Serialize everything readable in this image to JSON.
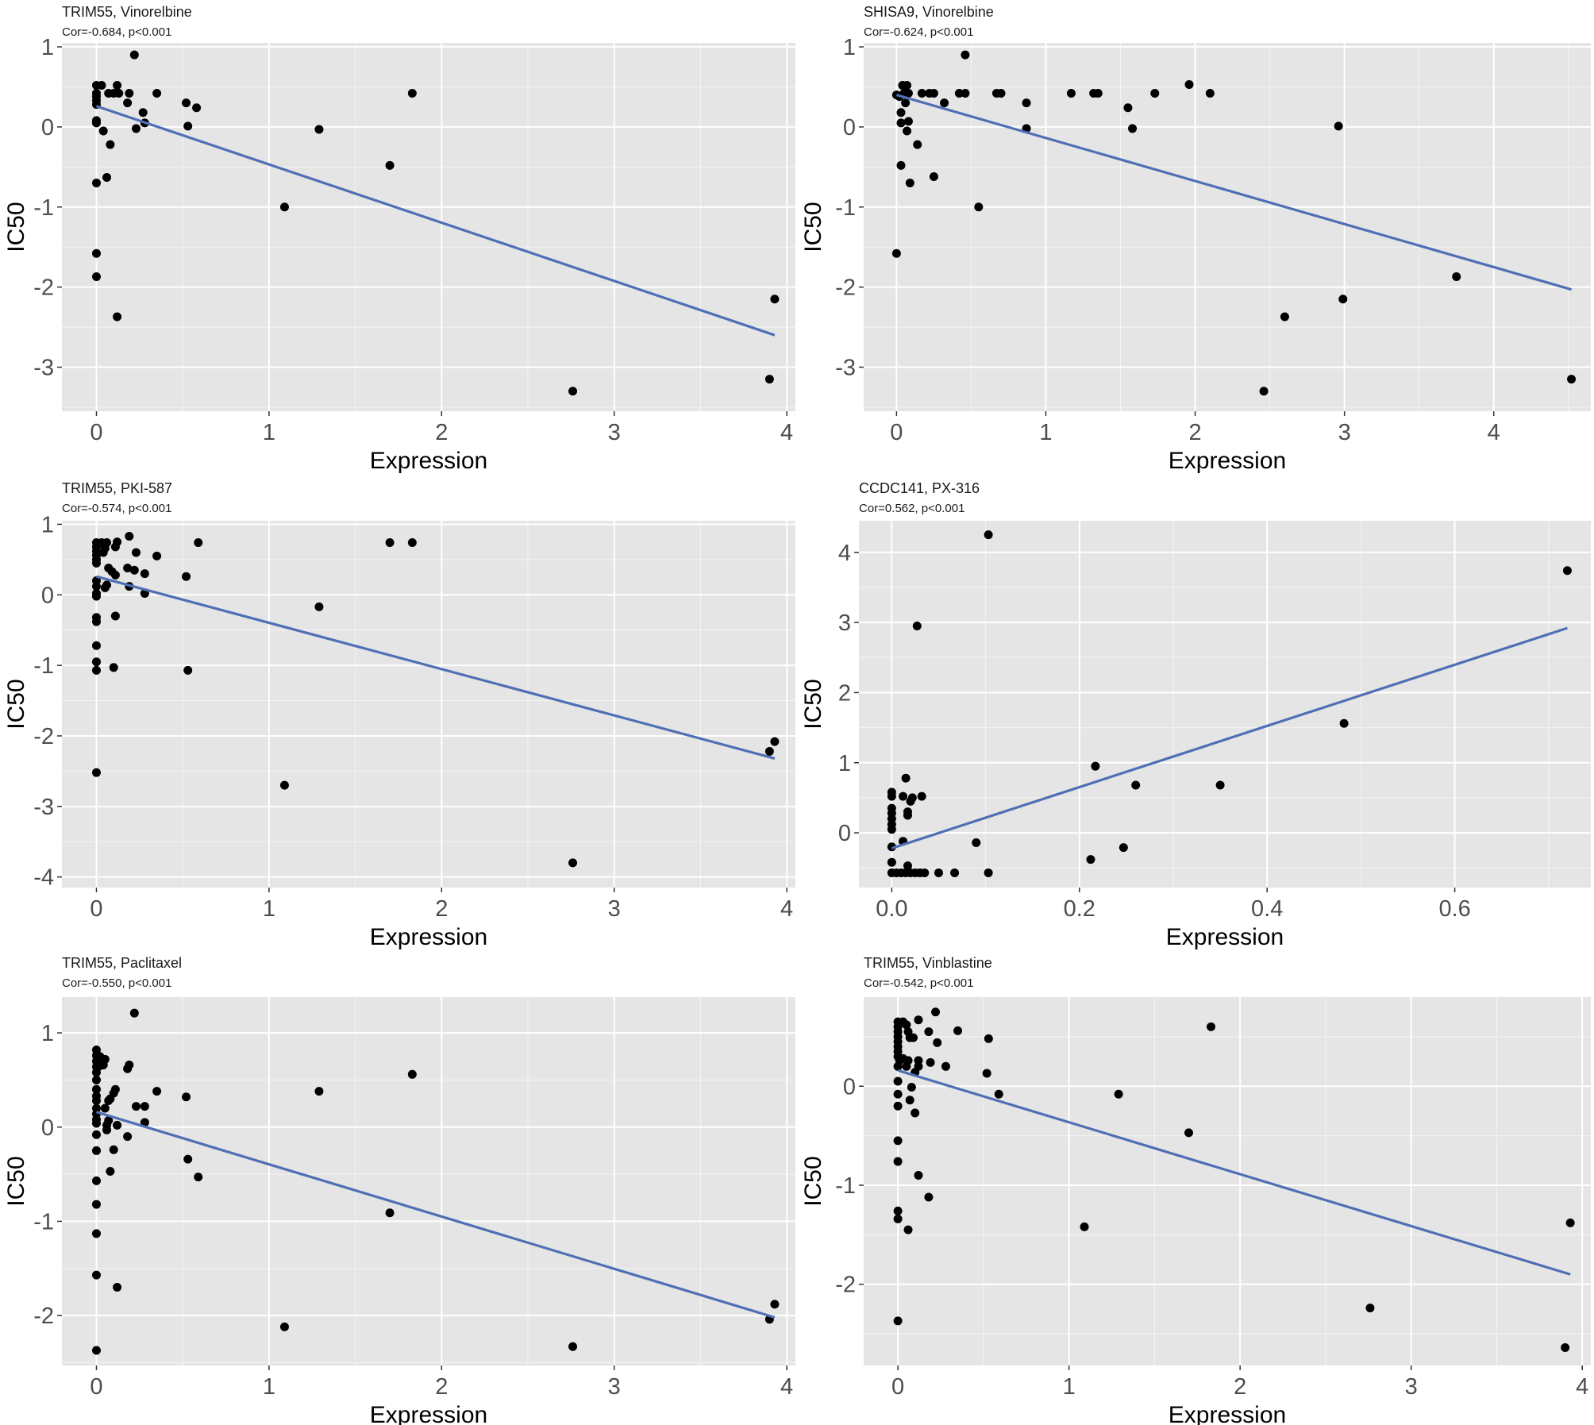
{
  "figure": {
    "colors": {
      "panel_bg": "#e5e5e5",
      "grid": "#ffffff",
      "point": "#000000",
      "line": "#4f6fb5",
      "tick_text": "#4d4d4d"
    }
  },
  "chart_data": [
    {
      "type": "scatter",
      "title": "TRIM55, Vinorelbine",
      "subtitle": "Cor=-0.684, p<0.001",
      "xlabel": "Expression",
      "ylabel": "IC50",
      "xlim": [
        -0.2,
        4.05
      ],
      "ylim": [
        -3.55,
        1.05
      ],
      "xticks": [
        0,
        1,
        2,
        3,
        4
      ],
      "xtick_labels": [
        "0",
        "1",
        "2",
        "3",
        "4"
      ],
      "yticks": [
        -3,
        -2,
        -1,
        0,
        1
      ],
      "ytick_labels": [
        "-3",
        "-2",
        "-1",
        "0",
        "1"
      ],
      "grid": true,
      "fit_line": {
        "x": [
          0,
          3.93
        ],
        "y": [
          0.26,
          -2.6
        ]
      },
      "points": [
        [
          0,
          0.52
        ],
        [
          0.03,
          0.52
        ],
        [
          0,
          0.42
        ],
        [
          0,
          0.38
        ],
        [
          0,
          0.33
        ],
        [
          0,
          0.28
        ],
        [
          0.07,
          0.42
        ],
        [
          0.1,
          0.42
        ],
        [
          0.13,
          0.42
        ],
        [
          0.12,
          0.52
        ],
        [
          0.19,
          0.42
        ],
        [
          0.18,
          0.3
        ],
        [
          0.22,
          0.9
        ],
        [
          0.27,
          0.18
        ],
        [
          0.28,
          0.05
        ],
        [
          0.23,
          -0.02
        ],
        [
          0.35,
          0.42
        ],
        [
          0.52,
          0.3
        ],
        [
          0.58,
          0.24
        ],
        [
          0.53,
          0.01
        ],
        [
          0,
          0.08
        ],
        [
          0,
          0.05
        ],
        [
          0.04,
          -0.05
        ],
        [
          0.08,
          -0.22
        ],
        [
          0.06,
          -0.63
        ],
        [
          0,
          -0.7
        ],
        [
          0,
          -1.58
        ],
        [
          0,
          -1.87
        ],
        [
          0.12,
          -2.37
        ],
        [
          1.09,
          -1.0
        ],
        [
          1.29,
          -0.03
        ],
        [
          1.7,
          -0.48
        ],
        [
          1.83,
          0.42
        ],
        [
          2.76,
          -3.3
        ],
        [
          3.9,
          -3.15
        ],
        [
          3.93,
          -2.15
        ]
      ]
    },
    {
      "type": "scatter",
      "title": "SHISA9, Vinorelbine",
      "subtitle": "Cor=-0.624, p<0.001",
      "xlabel": "Expression",
      "ylabel": "IC50",
      "xlim": [
        -0.22,
        4.65
      ],
      "ylim": [
        -3.55,
        1.05
      ],
      "xticks": [
        0,
        1,
        2,
        3,
        4
      ],
      "xtick_labels": [
        "0",
        "1",
        "2",
        "3",
        "4"
      ],
      "yticks": [
        -3,
        -2,
        -1,
        0,
        1
      ],
      "ytick_labels": [
        "-3",
        "-2",
        "-1",
        "0",
        "1"
      ],
      "grid": true,
      "fit_line": {
        "x": [
          0,
          4.52
        ],
        "y": [
          0.4,
          -2.03
        ]
      },
      "points": [
        [
          0,
          0.4
        ],
        [
          0.02,
          0.38
        ],
        [
          0.04,
          0.52
        ],
        [
          0.07,
          0.52
        ],
        [
          0.05,
          0.42
        ],
        [
          0.08,
          0.42
        ],
        [
          0.17,
          0.42
        ],
        [
          0.22,
          0.42
        ],
        [
          0.25,
          0.42
        ],
        [
          0.42,
          0.42
        ],
        [
          0.46,
          0.42
        ],
        [
          0.67,
          0.42
        ],
        [
          0.7,
          0.42
        ],
        [
          1.17,
          0.42
        ],
        [
          1.32,
          0.42
        ],
        [
          1.35,
          0.42
        ],
        [
          1.73,
          0.42
        ],
        [
          2.1,
          0.42
        ],
        [
          1.96,
          0.53
        ],
        [
          0.46,
          0.9
        ],
        [
          0.32,
          0.3
        ],
        [
          0.06,
          0.3
        ],
        [
          0.87,
          0.3
        ],
        [
          1.55,
          0.24
        ],
        [
          0.03,
          0.18
        ],
        [
          0.03,
          0.05
        ],
        [
          0.08,
          0.07
        ],
        [
          0.07,
          -0.05
        ],
        [
          0.87,
          -0.02
        ],
        [
          1.58,
          -0.02
        ],
        [
          2.96,
          0.01
        ],
        [
          0.14,
          -0.22
        ],
        [
          0.03,
          -0.48
        ],
        [
          0.25,
          -0.62
        ],
        [
          0.09,
          -0.7
        ],
        [
          0.55,
          -1.0
        ],
        [
          0,
          -1.58
        ],
        [
          2.46,
          -3.3
        ],
        [
          2.6,
          -2.37
        ],
        [
          2.99,
          -2.15
        ],
        [
          3.75,
          -1.87
        ],
        [
          4.52,
          -3.15
        ]
      ]
    },
    {
      "type": "scatter",
      "title": "TRIM55, PKI-587",
      "subtitle": "Cor=-0.574, p<0.001",
      "xlabel": "Expression",
      "ylabel": "IC50",
      "xlim": [
        -0.2,
        4.05
      ],
      "ylim": [
        -4.15,
        1.05
      ],
      "xticks": [
        0,
        1,
        2,
        3,
        4
      ],
      "xtick_labels": [
        "0",
        "1",
        "2",
        "3",
        "4"
      ],
      "yticks": [
        -4,
        -3,
        -2,
        -1,
        0,
        1
      ],
      "ytick_labels": [
        "-4",
        "-3",
        "-2",
        "-1",
        "0",
        "1"
      ],
      "grid": true,
      "fit_line": {
        "x": [
          0,
          3.93
        ],
        "y": [
          0.26,
          -2.32
        ]
      },
      "points": [
        [
          0,
          0.74
        ],
        [
          0,
          0.68
        ],
        [
          0,
          0.62
        ],
        [
          0,
          0.56
        ],
        [
          0,
          0.5
        ],
        [
          0,
          0.45
        ],
        [
          0.03,
          0.74
        ],
        [
          0.06,
          0.74
        ],
        [
          0.05,
          0.66
        ],
        [
          0.04,
          0.6
        ],
        [
          0.12,
          0.75
        ],
        [
          0.11,
          0.68
        ],
        [
          0.19,
          0.83
        ],
        [
          0.23,
          0.6
        ],
        [
          0.35,
          0.55
        ],
        [
          0.59,
          0.74
        ],
        [
          1.7,
          0.74
        ],
        [
          1.83,
          0.74
        ],
        [
          0.07,
          0.38
        ],
        [
          0.09,
          0.33
        ],
        [
          0.11,
          0.28
        ],
        [
          0.18,
          0.38
        ],
        [
          0.22,
          0.35
        ],
        [
          0.28,
          0.3
        ],
        [
          0.52,
          0.26
        ],
        [
          0,
          0.2
        ],
        [
          0,
          0.12
        ],
        [
          0.06,
          0.14
        ],
        [
          0.05,
          0.1
        ],
        [
          0.19,
          0.12
        ],
        [
          0,
          0.02
        ],
        [
          0,
          -0.02
        ],
        [
          0.28,
          0.02
        ],
        [
          0.11,
          -0.3
        ],
        [
          0,
          -0.32
        ],
        [
          0,
          -0.38
        ],
        [
          0,
          -0.72
        ],
        [
          0,
          -0.95
        ],
        [
          0,
          -1.07
        ],
        [
          0.1,
          -1.03
        ],
        [
          0.53,
          -1.07
        ],
        [
          1.29,
          -0.17
        ],
        [
          0,
          -2.52
        ],
        [
          1.09,
          -2.7
        ],
        [
          2.76,
          -3.8
        ],
        [
          3.9,
          -2.22
        ],
        [
          3.93,
          -2.08
        ]
      ]
    },
    {
      "type": "scatter",
      "title": "CCDC141, PX-316",
      "subtitle": "Cor=0.562, p<0.001",
      "xlabel": "Expression",
      "ylabel": "IC50",
      "xlim": [
        -0.035,
        0.745
      ],
      "ylim": [
        -0.78,
        4.45
      ],
      "xticks": [
        0.0,
        0.2,
        0.4,
        0.6
      ],
      "xtick_labels": [
        "0.0",
        "0.2",
        "0.4",
        "0.6"
      ],
      "yticks": [
        0,
        1,
        2,
        3,
        4
      ],
      "ytick_labels": [
        "0",
        "1",
        "2",
        "3",
        "4"
      ],
      "grid": true,
      "fit_line": {
        "x": [
          0,
          0.72
        ],
        "y": [
          -0.22,
          2.92
        ]
      },
      "points": [
        [
          0,
          0.58
        ],
        [
          0,
          0.52
        ],
        [
          0,
          0.35
        ],
        [
          0,
          0.28
        ],
        [
          0,
          0.2
        ],
        [
          0,
          0.12
        ],
        [
          0,
          0.05
        ],
        [
          0.015,
          0.78
        ],
        [
          0.012,
          0.52
        ],
        [
          0.02,
          0.45
        ],
        [
          0.022,
          0.5
        ],
        [
          0.032,
          0.52
        ],
        [
          0.017,
          0.3
        ],
        [
          0.017,
          0.25
        ],
        [
          0,
          -0.2
        ],
        [
          0.012,
          -0.12
        ],
        [
          0,
          -0.42
        ],
        [
          0,
          -0.57
        ],
        [
          0.017,
          -0.47
        ],
        [
          0.005,
          -0.57
        ],
        [
          0.01,
          -0.57
        ],
        [
          0.015,
          -0.57
        ],
        [
          0.02,
          -0.57
        ],
        [
          0.025,
          -0.57
        ],
        [
          0.03,
          -0.57
        ],
        [
          0.035,
          -0.57
        ],
        [
          0.05,
          -0.57
        ],
        [
          0.067,
          -0.57
        ],
        [
          0.09,
          -0.14
        ],
        [
          0.103,
          -0.57
        ],
        [
          0.103,
          4.25
        ],
        [
          0.027,
          2.95
        ],
        [
          0.212,
          -0.38
        ],
        [
          0.217,
          0.95
        ],
        [
          0.247,
          -0.21
        ],
        [
          0.26,
          0.68
        ],
        [
          0.35,
          0.68
        ],
        [
          0.482,
          1.56
        ],
        [
          0.72,
          3.74
        ]
      ]
    },
    {
      "type": "scatter",
      "title": "TRIM55, Paclitaxel",
      "subtitle": "Cor=-0.550, p<0.001",
      "xlabel": "Expression",
      "ylabel": "IC50",
      "xlim": [
        -0.2,
        4.05
      ],
      "ylim": [
        -2.53,
        1.38
      ],
      "xticks": [
        0,
        1,
        2,
        3,
        4
      ],
      "xtick_labels": [
        "0",
        "1",
        "2",
        "3",
        "4"
      ],
      "yticks": [
        -2,
        -1,
        0,
        1
      ],
      "ytick_labels": [
        "-2",
        "-1",
        "0",
        "1"
      ],
      "grid": true,
      "fit_line": {
        "x": [
          0,
          3.93
        ],
        "y": [
          0.16,
          -2.02
        ]
      },
      "points": [
        [
          0,
          0.82
        ],
        [
          0,
          0.76
        ],
        [
          0,
          0.7
        ],
        [
          0,
          0.64
        ],
        [
          0,
          0.58
        ],
        [
          0,
          0.5
        ],
        [
          0,
          0.4
        ],
        [
          0,
          0.33
        ],
        [
          0,
          0.28
        ],
        [
          0,
          0.2
        ],
        [
          0,
          0.14
        ],
        [
          0,
          0.08
        ],
        [
          0,
          0.04
        ],
        [
          0,
          -0.08
        ],
        [
          0.02,
          0.75
        ],
        [
          0.05,
          0.72
        ],
        [
          0.04,
          0.66
        ],
        [
          0.02,
          0.65
        ],
        [
          0.22,
          1.21
        ],
        [
          0.19,
          0.66
        ],
        [
          0.18,
          0.62
        ],
        [
          0.11,
          0.4
        ],
        [
          0.1,
          0.36
        ],
        [
          0.08,
          0.3
        ],
        [
          0.07,
          0.28
        ],
        [
          0.35,
          0.38
        ],
        [
          0.52,
          0.32
        ],
        [
          0.23,
          0.22
        ],
        [
          0.28,
          0.22
        ],
        [
          0.28,
          0.05
        ],
        [
          0.05,
          0.2
        ],
        [
          0.07,
          0.07
        ],
        [
          0.06,
          0.02
        ],
        [
          0.12,
          0.02
        ],
        [
          0.06,
          -0.03
        ],
        [
          0.18,
          -0.1
        ],
        [
          0.1,
          -0.24
        ],
        [
          0,
          -0.25
        ],
        [
          0.08,
          -0.47
        ],
        [
          0.53,
          -0.34
        ],
        [
          0.59,
          -0.53
        ],
        [
          0,
          -0.57
        ],
        [
          0,
          -0.82
        ],
        [
          0,
          -1.13
        ],
        [
          0,
          -1.57
        ],
        [
          0.12,
          -1.7
        ],
        [
          0,
          -2.37
        ],
        [
          1.09,
          -2.12
        ],
        [
          1.29,
          0.38
        ],
        [
          1.7,
          -0.91
        ],
        [
          1.83,
          0.56
        ],
        [
          2.76,
          -2.33
        ],
        [
          3.9,
          -2.04
        ],
        [
          3.93,
          -1.88
        ]
      ]
    },
    {
      "type": "scatter",
      "title": "TRIM55, Vinblastine",
      "subtitle": "Cor=-0.542, p<0.001",
      "xlabel": "Expression",
      "ylabel": "IC50",
      "xlim": [
        -0.2,
        4.05
      ],
      "ylim": [
        -2.82,
        0.9
      ],
      "xticks": [
        0,
        1,
        2,
        3,
        4
      ],
      "xtick_labels": [
        "0",
        "1",
        "2",
        "3",
        "4"
      ],
      "yticks": [
        -2,
        -1,
        0
      ],
      "ytick_labels": [
        "-2",
        "-1",
        "0"
      ],
      "grid": true,
      "fit_line": {
        "x": [
          0,
          3.93
        ],
        "y": [
          0.16,
          -1.9
        ]
      },
      "points": [
        [
          0,
          0.65
        ],
        [
          0,
          0.6
        ],
        [
          0,
          0.55
        ],
        [
          0,
          0.5
        ],
        [
          0,
          0.45
        ],
        [
          0,
          0.4
        ],
        [
          0,
          0.35
        ],
        [
          0,
          0.3
        ],
        [
          0.03,
          0.65
        ],
        [
          0.05,
          0.62
        ],
        [
          0.12,
          0.67
        ],
        [
          0.22,
          0.75
        ],
        [
          0.06,
          0.55
        ],
        [
          0.07,
          0.49
        ],
        [
          0.09,
          0.49
        ],
        [
          0.18,
          0.55
        ],
        [
          0.35,
          0.56
        ],
        [
          0.23,
          0.44
        ],
        [
          0.53,
          0.48
        ],
        [
          0.28,
          0.2
        ],
        [
          0.01,
          0.26
        ],
        [
          0.03,
          0.28
        ],
        [
          0.06,
          0.26
        ],
        [
          0.12,
          0.26
        ],
        [
          0.12,
          0.2
        ],
        [
          0.1,
          0.14
        ],
        [
          0.19,
          0.24
        ],
        [
          0.52,
          0.13
        ],
        [
          0,
          0.2
        ],
        [
          0.05,
          0.2
        ],
        [
          0,
          0.05
        ],
        [
          0.08,
          -0.01
        ],
        [
          0,
          -0.08
        ],
        [
          0.07,
          -0.14
        ],
        [
          0.1,
          -0.27
        ],
        [
          0,
          -0.2
        ],
        [
          0.59,
          -0.08
        ],
        [
          1.29,
          -0.08
        ],
        [
          1.7,
          -0.47
        ],
        [
          1.83,
          0.6
        ],
        [
          0,
          -0.55
        ],
        [
          0,
          -0.76
        ],
        [
          0.12,
          -0.9
        ],
        [
          0.18,
          -1.12
        ],
        [
          0,
          -1.26
        ],
        [
          0,
          -1.34
        ],
        [
          0.06,
          -1.45
        ],
        [
          0,
          -2.37
        ],
        [
          1.09,
          -1.42
        ],
        [
          2.76,
          -2.24
        ],
        [
          3.9,
          -2.64
        ],
        [
          3.93,
          -1.38
        ]
      ]
    }
  ]
}
